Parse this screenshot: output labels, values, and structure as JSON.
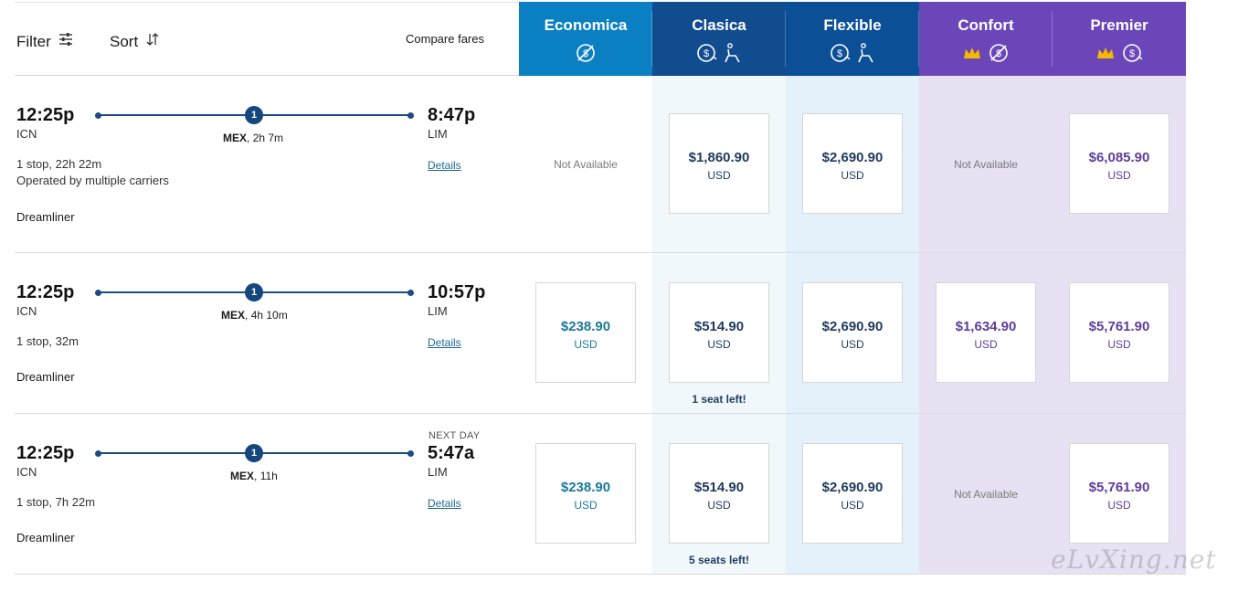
{
  "toolbar": {
    "filter_label": "Filter",
    "sort_label": "Sort",
    "compare_label": "Compare fares"
  },
  "fares": [
    {
      "name": "Economica",
      "color": "#0a7fc2",
      "icons": [
        "no-change-fee-icon"
      ]
    },
    {
      "name": "Clasica",
      "color": "#114c8f",
      "icons": [
        "change-fee-icon",
        "seat-icon"
      ]
    },
    {
      "name": "Flexible",
      "color": "#0b4f96",
      "icons": [
        "change-fee-icon",
        "seat-icon"
      ]
    },
    {
      "name": "Confort",
      "color": "#6a46b8",
      "icons": [
        "crown-icon",
        "no-change-fee-icon"
      ]
    },
    {
      "name": "Premier",
      "color": "#6a46b8",
      "icons": [
        "crown-icon",
        "change-fee-icon"
      ]
    }
  ],
  "flights": [
    {
      "depart_time": "12:25p",
      "depart_code": "ICN",
      "arrive_time": "8:47p",
      "arrive_code": "LIM",
      "next_day": "",
      "stops": "1",
      "stop_city": "MEX",
      "stop_duration": "2h 7m",
      "summary": "1 stop, 22h 22m",
      "operated": "Operated by multiple carriers",
      "aircraft": "Dreamliner",
      "details": "Details",
      "prices": [
        {
          "available": false,
          "label": "Not Available"
        },
        {
          "available": true,
          "amount": "$1,860.90",
          "currency": "USD"
        },
        {
          "available": true,
          "amount": "$2,690.90",
          "currency": "USD"
        },
        {
          "available": false,
          "label": "Not Available"
        },
        {
          "available": true,
          "amount": "$6,085.90",
          "currency": "USD"
        }
      ],
      "seats_note": ""
    },
    {
      "depart_time": "12:25p",
      "depart_code": "ICN",
      "arrive_time": "10:57p",
      "arrive_code": "LIM",
      "next_day": "",
      "stops": "1",
      "stop_city": "MEX",
      "stop_duration": "4h 10m",
      "summary": "1 stop, 32m",
      "operated": "",
      "aircraft": "Dreamliner",
      "details": "Details",
      "prices": [
        {
          "available": true,
          "amount": "$238.90",
          "currency": "USD"
        },
        {
          "available": true,
          "amount": "$514.90",
          "currency": "USD"
        },
        {
          "available": true,
          "amount": "$2,690.90",
          "currency": "USD"
        },
        {
          "available": true,
          "amount": "$1,634.90",
          "currency": "USD"
        },
        {
          "available": true,
          "amount": "$5,761.90",
          "currency": "USD"
        }
      ],
      "seats_note": "1 seat left!"
    },
    {
      "depart_time": "12:25p",
      "depart_code": "ICN",
      "arrive_time": "5:47a",
      "arrive_code": "LIM",
      "next_day": "NEXT DAY",
      "stops": "1",
      "stop_city": "MEX",
      "stop_duration": "11h",
      "summary": "1 stop, 7h 22m",
      "operated": "",
      "aircraft": "Dreamliner",
      "details": "Details",
      "prices": [
        {
          "available": true,
          "amount": "$238.90",
          "currency": "USD"
        },
        {
          "available": true,
          "amount": "$514.90",
          "currency": "USD"
        },
        {
          "available": true,
          "amount": "$2,690.90",
          "currency": "USD"
        },
        {
          "available": false,
          "label": "Not Available"
        },
        {
          "available": true,
          "amount": "$5,761.90",
          "currency": "USD"
        }
      ],
      "seats_note": "5 seats left!"
    }
  ],
  "watermark": "eLvXing.net",
  "colors": {
    "economica_price": "#1a7a9a",
    "classic_price": "#1f3a5f",
    "premium_price": "#5f3d9b",
    "col_clasica_bg": "#f1f8fc",
    "col_flexible_bg": "#e4f1fa",
    "col_premium_bg": "#e7e1f3"
  }
}
